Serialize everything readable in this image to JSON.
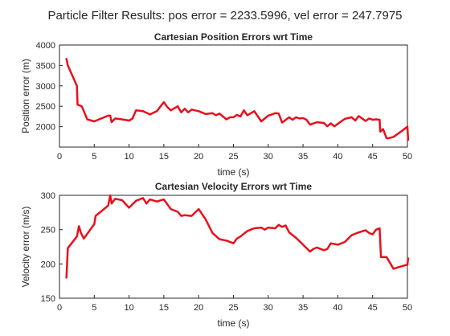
{
  "figure_title": "Particle Filter Results: pos error = 2233.5996, vel error = 247.7975",
  "colors": {
    "series": "#e8101c",
    "axis": "#262626"
  },
  "chart_data": [
    {
      "type": "line",
      "title": "Cartesian Position Errors wrt Time",
      "xlabel": "time (s)",
      "ylabel": "Position error (m)",
      "xlim": [
        0,
        50
      ],
      "ylim": [
        1500,
        4000
      ],
      "xticks": [
        0,
        5,
        10,
        15,
        20,
        25,
        30,
        35,
        40,
        45,
        50
      ],
      "yticks": [
        2000,
        2500,
        3000,
        3500,
        4000
      ],
      "grid": false,
      "x": [
        1,
        1.2,
        2.5,
        2.6,
        3.2,
        4,
        5,
        6,
        7,
        7.3,
        7.5,
        8,
        9,
        10,
        10.5,
        11,
        12,
        13,
        14,
        15,
        15.5,
        16,
        17,
        17.5,
        18,
        18.5,
        19,
        20,
        21,
        22,
        22.5,
        23,
        24,
        24.5,
        25,
        25.5,
        26,
        26.5,
        27,
        28,
        29,
        30,
        31,
        31.5,
        32,
        33,
        33.5,
        34,
        34.5,
        35,
        35.5,
        36,
        37,
        38,
        38.5,
        39,
        39.5,
        40,
        41,
        42,
        42.5,
        43,
        44,
        44.5,
        45,
        45.5,
        46,
        46.1,
        46.5,
        47,
        47.1,
        48,
        49,
        50,
        50.1
      ],
      "y": [
        3660,
        3500,
        3000,
        2540,
        2500,
        2180,
        2130,
        2200,
        2270,
        2270,
        2110,
        2200,
        2180,
        2150,
        2200,
        2400,
        2380,
        2300,
        2380,
        2600,
        2480,
        2400,
        2500,
        2350,
        2440,
        2350,
        2420,
        2380,
        2310,
        2330,
        2280,
        2320,
        2180,
        2230,
        2230,
        2290,
        2250,
        2400,
        2280,
        2380,
        2130,
        2270,
        2330,
        2320,
        2100,
        2230,
        2170,
        2230,
        2200,
        2210,
        2170,
        2050,
        2110,
        2090,
        2010,
        2080,
        2010,
        2070,
        2190,
        2230,
        2150,
        2260,
        2140,
        2200,
        2170,
        2180,
        2170,
        1880,
        1940,
        1720,
        1710,
        1750,
        1870,
        2000,
        1680
      ]
    },
    {
      "type": "line",
      "title": "Cartesian Velocity Errors wrt Time",
      "xlabel": "time (s)",
      "ylabel": "Velocity error (m/s)",
      "xlim": [
        0,
        50
      ],
      "ylim": [
        150,
        300
      ],
      "xticks": [
        0,
        5,
        10,
        15,
        20,
        25,
        30,
        35,
        40,
        45,
        50
      ],
      "yticks": [
        150,
        200,
        250,
        300
      ],
      "grid": false,
      "x": [
        1,
        1.2,
        2.5,
        2.8,
        3.1,
        3.5,
        5,
        5.2,
        7,
        7.3,
        7.5,
        8,
        9,
        10,
        11,
        12,
        12.5,
        13,
        14,
        15,
        16,
        17,
        17.5,
        18,
        19,
        20,
        21,
        22,
        23,
        24,
        25,
        25.5,
        26,
        27,
        28,
        29,
        29.5,
        30,
        31,
        31.5,
        32,
        32.5,
        33,
        34,
        35,
        36,
        36.5,
        37,
        38,
        38.5,
        39,
        40,
        41,
        42,
        43,
        44,
        44.5,
        45,
        45.5,
        46,
        46.2,
        47,
        48,
        49,
        50,
        50.1
      ],
      "y": [
        180,
        223,
        240,
        255,
        245,
        237,
        258,
        270,
        285,
        300,
        288,
        295,
        293,
        282,
        292,
        296,
        288,
        294,
        291,
        294,
        280,
        276,
        270,
        271,
        270,
        280,
        265,
        245,
        236,
        234,
        230,
        237,
        240,
        248,
        252,
        253,
        250,
        253,
        252,
        257,
        254,
        256,
        246,
        238,
        228,
        218,
        222,
        224,
        220,
        222,
        230,
        228,
        232,
        242,
        246,
        249,
        245,
        243,
        250,
        252,
        210,
        210,
        193,
        196,
        199,
        208
      ]
    }
  ]
}
